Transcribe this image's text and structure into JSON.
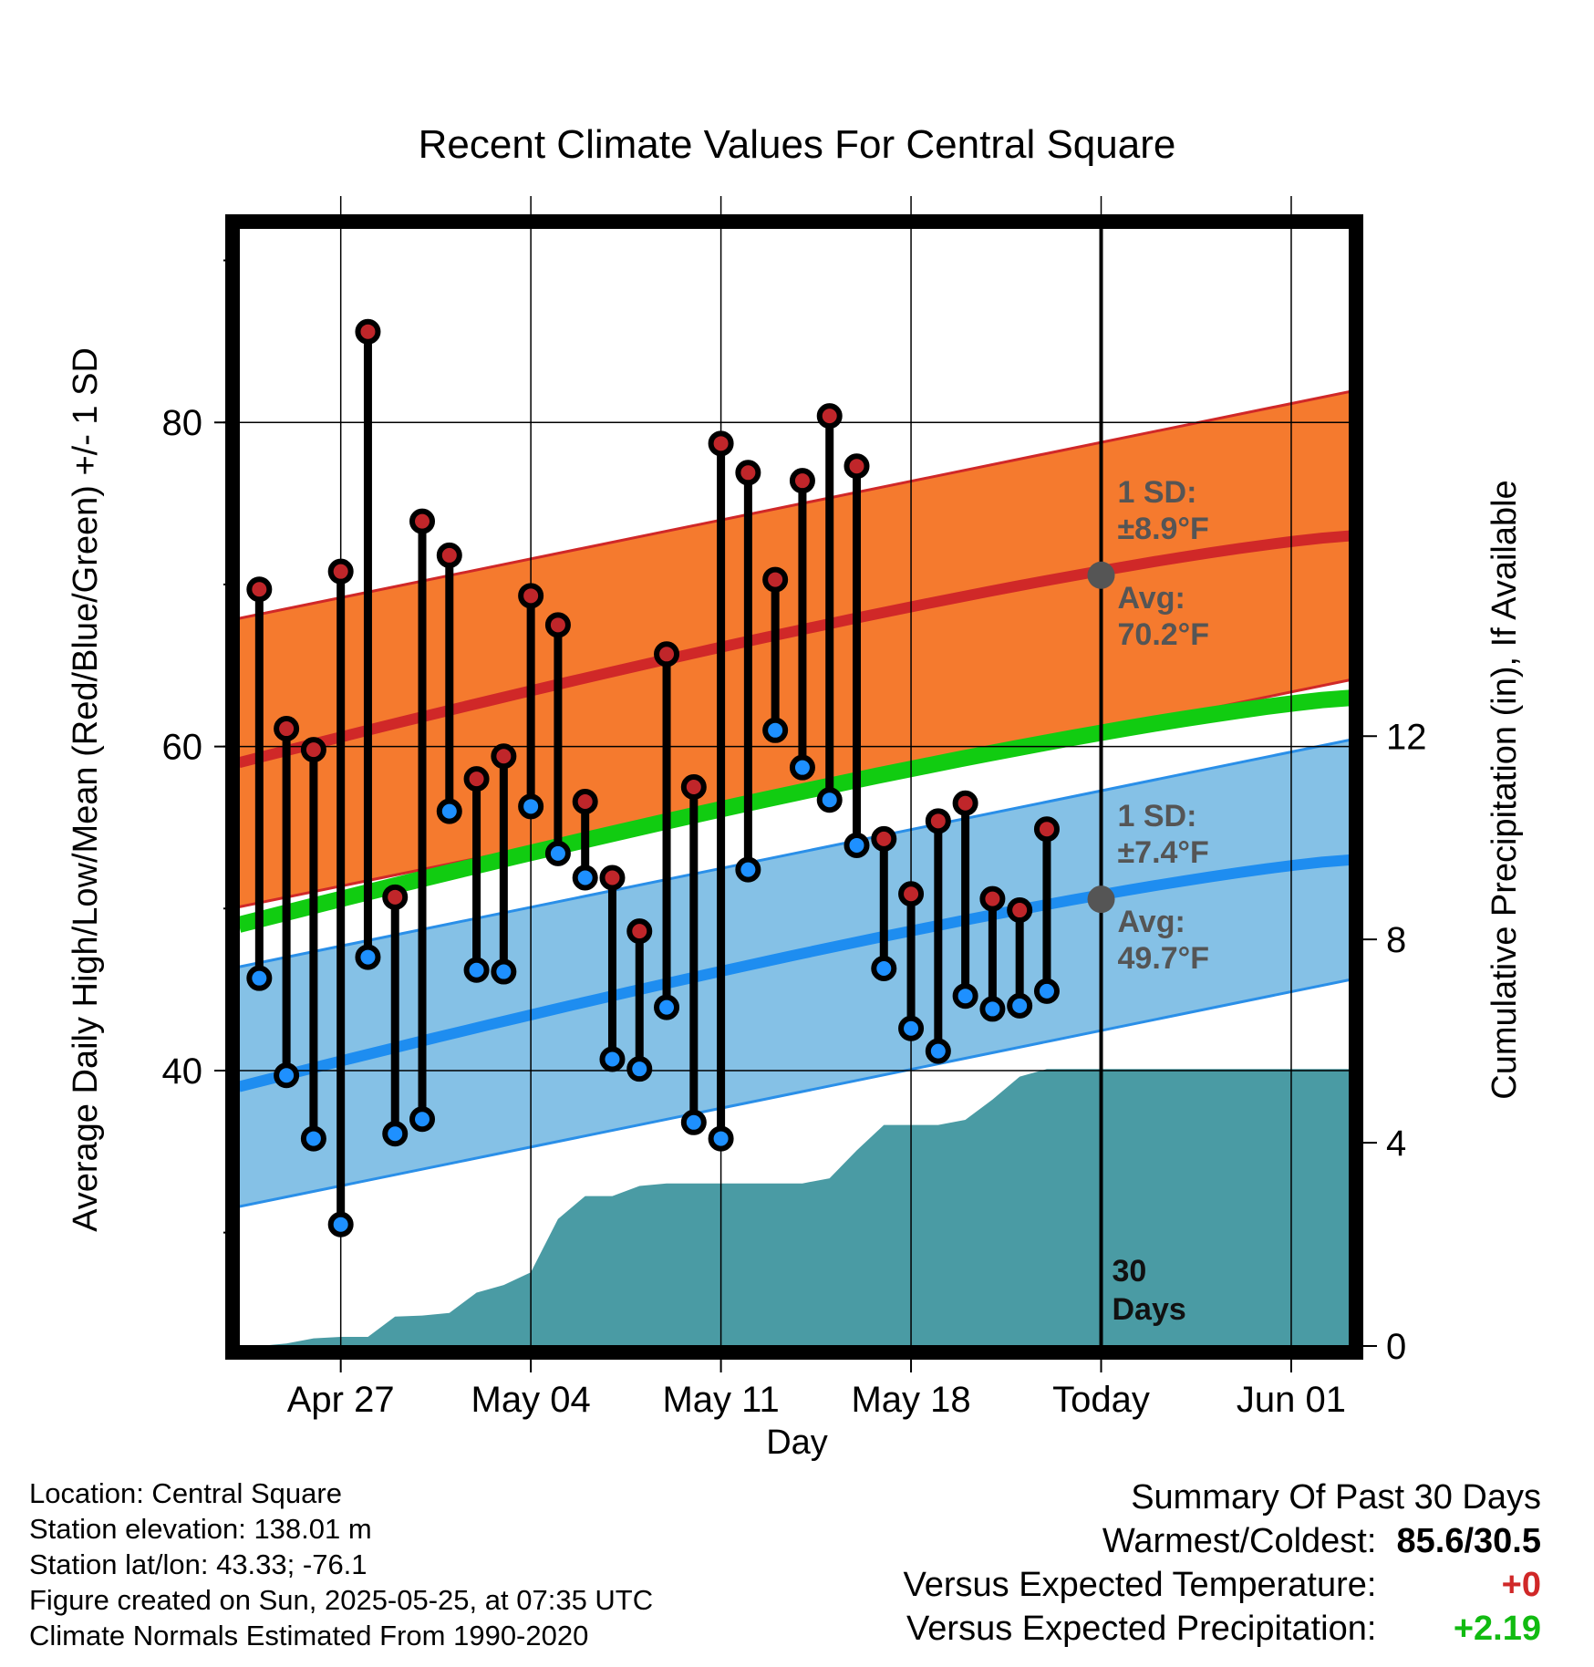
{
  "chart_data": {
    "type": "range-line",
    "title": "Recent Climate Values For Central Square",
    "xlabel": "Day",
    "ylabel_left": "Average Daily High/Low/Mean (Red/Blue/Green) +/- 1 SD",
    "ylabel_right": "Cumulative Precipitation (in), If Available",
    "x_range": [
      "2025-04-24",
      "2025-06-03"
    ],
    "y_left_range": [
      23,
      92
    ],
    "y_right_range": [
      0,
      22
    ],
    "x_ticks": [
      {
        "date": "2025-04-27",
        "label": "Apr 27"
      },
      {
        "date": "2025-05-04",
        "label": "May 04"
      },
      {
        "date": "2025-05-11",
        "label": "May 11"
      },
      {
        "date": "2025-05-18",
        "label": "May 18"
      },
      {
        "date": "2025-05-25",
        "label": "Today"
      },
      {
        "date": "2025-06-01",
        "label": "Jun 01"
      }
    ],
    "y_left_ticks": [
      40,
      60,
      80
    ],
    "y_right_ticks": [
      0,
      4,
      8,
      12
    ],
    "grid": true,
    "today": "2025-05-25",
    "daily": [
      {
        "date": "2025-04-24",
        "high": 69.7,
        "low": 45.7
      },
      {
        "date": "2025-04-25",
        "high": 61.1,
        "low": 39.7
      },
      {
        "date": "2025-04-26",
        "high": 59.8,
        "low": 35.8
      },
      {
        "date": "2025-04-27",
        "high": 70.8,
        "low": 30.5
      },
      {
        "date": "2025-04-28",
        "high": 85.6,
        "low": 47.0
      },
      {
        "date": "2025-04-29",
        "high": 50.7,
        "low": 36.1
      },
      {
        "date": "2025-04-30",
        "high": 73.9,
        "low": 37.0
      },
      {
        "date": "2025-05-01",
        "high": 71.8,
        "low": 56.0
      },
      {
        "date": "2025-05-02",
        "high": 58.0,
        "low": 46.2
      },
      {
        "date": "2025-05-03",
        "high": 59.4,
        "low": 46.1
      },
      {
        "date": "2025-05-04",
        "high": 69.3,
        "low": 56.3
      },
      {
        "date": "2025-05-05",
        "high": 67.5,
        "low": 53.4
      },
      {
        "date": "2025-05-06",
        "high": 56.6,
        "low": 51.9
      },
      {
        "date": "2025-05-07",
        "high": 51.9,
        "low": 40.7
      },
      {
        "date": "2025-05-08",
        "high": 48.6,
        "low": 40.1
      },
      {
        "date": "2025-05-09",
        "high": 65.7,
        "low": 43.9
      },
      {
        "date": "2025-05-10",
        "high": 57.5,
        "low": 36.8
      },
      {
        "date": "2025-05-11",
        "high": 78.7,
        "low": 35.8
      },
      {
        "date": "2025-05-12",
        "high": 76.9,
        "low": 52.4
      },
      {
        "date": "2025-05-13",
        "high": 70.3,
        "low": 61.0
      },
      {
        "date": "2025-05-14",
        "high": 76.4,
        "low": 58.7
      },
      {
        "date": "2025-05-15",
        "high": 80.4,
        "low": 56.7
      },
      {
        "date": "2025-05-16",
        "high": 77.3,
        "low": 53.9
      },
      {
        "date": "2025-05-17",
        "high": 54.3,
        "low": 46.3
      },
      {
        "date": "2025-05-18",
        "high": 50.9,
        "low": 42.6
      },
      {
        "date": "2025-05-19",
        "high": 55.4,
        "low": 41.2
      },
      {
        "date": "2025-05-20",
        "high": 56.5,
        "low": 44.6
      },
      {
        "date": "2025-05-21",
        "high": 50.6,
        "low": 43.8
      },
      {
        "date": "2025-05-22",
        "high": 49.9,
        "low": 44.0
      },
      {
        "date": "2025-05-23",
        "high": 54.9,
        "low": 44.9
      }
    ],
    "normal_high": {
      "start": 59.0,
      "end": 73.0
    },
    "normal_high_sd": 8.9,
    "normal_low": {
      "start": 39.0,
      "end": 53.0
    },
    "normal_low_sd": 7.4,
    "normal_mean": {
      "start": 49.0,
      "end": 63.0
    },
    "cumulative_precip": [
      {
        "date": "2025-04-24",
        "value": 0.0
      },
      {
        "date": "2025-04-25",
        "value": 0.05
      },
      {
        "date": "2025-04-26",
        "value": 0.15
      },
      {
        "date": "2025-04-27",
        "value": 0.18
      },
      {
        "date": "2025-04-28",
        "value": 0.18
      },
      {
        "date": "2025-04-29",
        "value": 0.58
      },
      {
        "date": "2025-04-30",
        "value": 0.6
      },
      {
        "date": "2025-05-01",
        "value": 0.65
      },
      {
        "date": "2025-05-02",
        "value": 1.05
      },
      {
        "date": "2025-05-03",
        "value": 1.2
      },
      {
        "date": "2025-05-04",
        "value": 1.45
      },
      {
        "date": "2025-05-05",
        "value": 2.5
      },
      {
        "date": "2025-05-06",
        "value": 2.95
      },
      {
        "date": "2025-05-07",
        "value": 2.95
      },
      {
        "date": "2025-05-08",
        "value": 3.15
      },
      {
        "date": "2025-05-09",
        "value": 3.2
      },
      {
        "date": "2025-05-10",
        "value": 3.2
      },
      {
        "date": "2025-05-11",
        "value": 3.2
      },
      {
        "date": "2025-05-12",
        "value": 3.2
      },
      {
        "date": "2025-05-13",
        "value": 3.2
      },
      {
        "date": "2025-05-14",
        "value": 3.2
      },
      {
        "date": "2025-05-15",
        "value": 3.3
      },
      {
        "date": "2025-05-16",
        "value": 3.85
      },
      {
        "date": "2025-05-17",
        "value": 4.35
      },
      {
        "date": "2025-05-18",
        "value": 4.35
      },
      {
        "date": "2025-05-19",
        "value": 4.35
      },
      {
        "date": "2025-05-20",
        "value": 4.45
      },
      {
        "date": "2025-05-21",
        "value": 4.85
      },
      {
        "date": "2025-05-22",
        "value": 5.3
      },
      {
        "date": "2025-05-23",
        "value": 5.45
      },
      {
        "date": "2025-05-24",
        "value": 5.45
      },
      {
        "date": "2025-06-03",
        "value": 5.45
      }
    ],
    "colors": {
      "high_band": "#f57a2e",
      "high_band_edge": "#d02828",
      "high_line": "#d02828",
      "low_band": "#85c1e6",
      "low_band_edge": "#2a8fe8",
      "low_line": "#1e8df0",
      "mean_line": "#11cc11",
      "precip": "#4a9ba4",
      "high_marker": "#c0262a",
      "low_marker": "#1e90ff",
      "avg_marker": "#555555"
    },
    "annotations": {
      "high_sd_label": "1 SD:",
      "high_sd_value": "±8.9°F",
      "high_avg_label": "Avg:",
      "high_avg_value": "70.2°F",
      "low_sd_label": "1 SD:",
      "low_sd_value": "±7.4°F",
      "low_avg_label": "Avg:",
      "low_avg_value": "49.7°F",
      "days_line1": "30",
      "days_line2": "Days"
    }
  },
  "info": {
    "location": "Location: Central Square",
    "elevation": "Station elevation: 138.01 m",
    "latlon": "Station lat/lon: 43.33; -76.1",
    "created": "Figure created on Sun, 2025-05-25, at 07:35 UTC",
    "normals": "Climate Normals Estimated From 1990-2020"
  },
  "summary": {
    "heading": "Summary Of Past 30 Days",
    "warmest_label": "Warmest/Coldest:",
    "warmest_value": "85.6/30.5",
    "temp_label": "Versus Expected Temperature:",
    "temp_value": "+0",
    "temp_color": "#d02828",
    "precip_label": "Versus Expected Precipitation:",
    "precip_value": "+2.19",
    "precip_color": "#11bb11"
  }
}
